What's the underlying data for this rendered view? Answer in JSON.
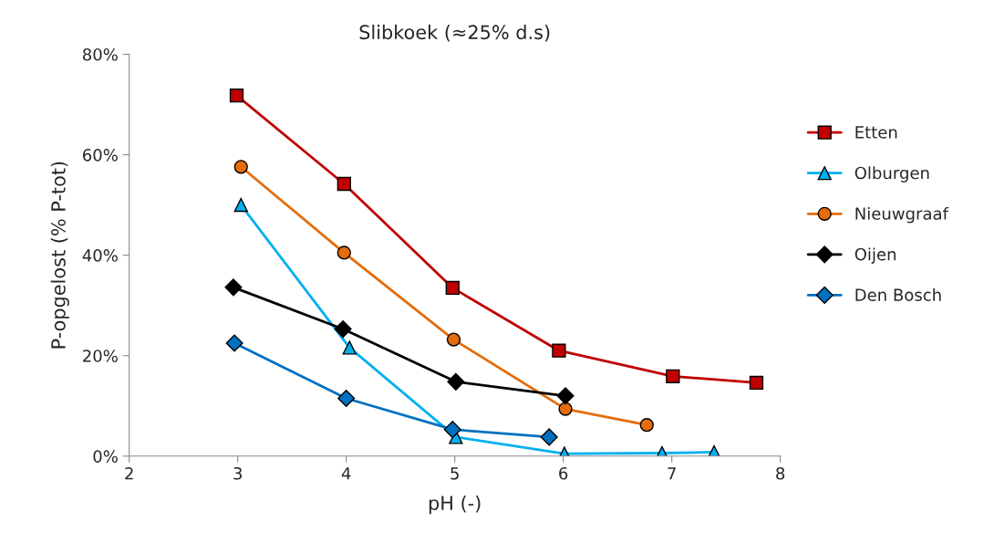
{
  "chart_data": {
    "type": "line",
    "title": "Slibkoek (≈25% d.s)",
    "xlabel": "pH (-)",
    "ylabel": "P-opgelost (% P-tot)",
    "xlim": [
      2,
      8
    ],
    "xticks": [
      2,
      3,
      4,
      5,
      6,
      7,
      8
    ],
    "ylim": [
      0,
      80
    ],
    "yticks": [
      {
        "value": 0,
        "label": "0%"
      },
      {
        "value": 20,
        "label": "20%"
      },
      {
        "value": 40,
        "label": "40%"
      },
      {
        "value": 60,
        "label": "60%"
      },
      {
        "value": 80,
        "label": "80%"
      }
    ],
    "grid": false,
    "legend": "right",
    "series": [
      {
        "name": "Etten",
        "color": "#c00000",
        "marker": "square",
        "x": [
          2.99,
          3.98,
          4.98,
          5.96,
          7.01,
          7.78
        ],
        "values": [
          71.8,
          54.2,
          33.5,
          21.0,
          15.9,
          14.6
        ]
      },
      {
        "name": "Olburgen",
        "color": "#00b0f0",
        "marker": "triangle",
        "x": [
          3.03,
          4.03,
          5.01,
          6.01,
          6.91,
          7.39
        ],
        "values": [
          50,
          21.6,
          3.8,
          0.5,
          0.6,
          0.8
        ]
      },
      {
        "name": "Nieuwgraaf",
        "color": "#e46c0a",
        "marker": "circle",
        "x": [
          3.03,
          3.98,
          4.99,
          6.02,
          6.77
        ],
        "values": [
          57.6,
          40.5,
          23.2,
          9.4,
          6.2
        ]
      },
      {
        "name": "Oijen",
        "color": "#000000",
        "marker": "diamond",
        "x": [
          2.96,
          3.97,
          5.01,
          6.02
        ],
        "values": [
          33.6,
          25.3,
          14.8,
          12.0
        ]
      },
      {
        "name": "Den Bosch",
        "color": "#0070c0",
        "marker": "diamond",
        "x": [
          2.97,
          4.0,
          4.98,
          5.87
        ],
        "values": [
          22.5,
          11.5,
          5.3,
          3.8
        ]
      }
    ]
  }
}
